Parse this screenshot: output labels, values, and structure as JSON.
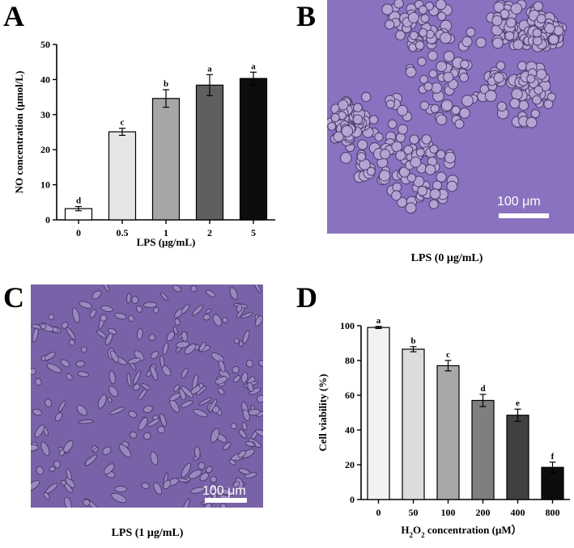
{
  "panels": {
    "a": {
      "letter": "A"
    },
    "b": {
      "letter": "B",
      "caption": "LPS (0 μg/mL)",
      "scalebar": "100 μm",
      "bg": "#8a72c0"
    },
    "c": {
      "letter": "C",
      "caption": "LPS (1 μg/mL)",
      "scalebar": "100 μm",
      "bg": "#7a62a8"
    },
    "d": {
      "letter": "D"
    }
  },
  "chart_data": [
    {
      "type": "bar",
      "panel": "A",
      "categories": [
        "0",
        "0.5",
        "1",
        "2",
        "5"
      ],
      "values": [
        3.2,
        25.1,
        34.6,
        38.4,
        40.3
      ],
      "errors": [
        0.6,
        1.0,
        2.5,
        3.0,
        1.8
      ],
      "significance": [
        "d",
        "c",
        "b",
        "a",
        "a"
      ],
      "colors": [
        "#ffffff",
        "#e6e6e6",
        "#a6a6a6",
        "#5f5f5f",
        "#0d0d0d"
      ],
      "xlabel": "LPS (μg/mL)",
      "ylabel": "NO concentration (μmol/L)",
      "ylim": [
        0,
        50
      ],
      "yticks": [
        0,
        10,
        20,
        30,
        40,
        50
      ],
      "grid": false
    },
    {
      "type": "bar",
      "panel": "D",
      "categories": [
        "0",
        "50",
        "100",
        "200",
        "400",
        "800"
      ],
      "values": [
        99,
        86.5,
        77,
        57,
        48.5,
        18.5
      ],
      "errors": [
        0.6,
        1.5,
        3.0,
        3.5,
        3.5,
        3.0
      ],
      "significance": [
        "a",
        "b",
        "c",
        "d",
        "e",
        "f"
      ],
      "colors": [
        "#f2f2f2",
        "#dcdcdc",
        "#a8a8a8",
        "#7f7f7f",
        "#404040",
        "#0d0d0d"
      ],
      "xlabel_prefix": "H",
      "xlabel_sub": "2",
      "xlabel_mid": "O",
      "xlabel_sub2": "2",
      "xlabel_suffix": " concentration (μM）",
      "ylabel": "Cell viability (%)",
      "ylim": [
        0,
        100
      ],
      "yticks": [
        0,
        20,
        40,
        60,
        80,
        100
      ],
      "grid": false
    }
  ]
}
